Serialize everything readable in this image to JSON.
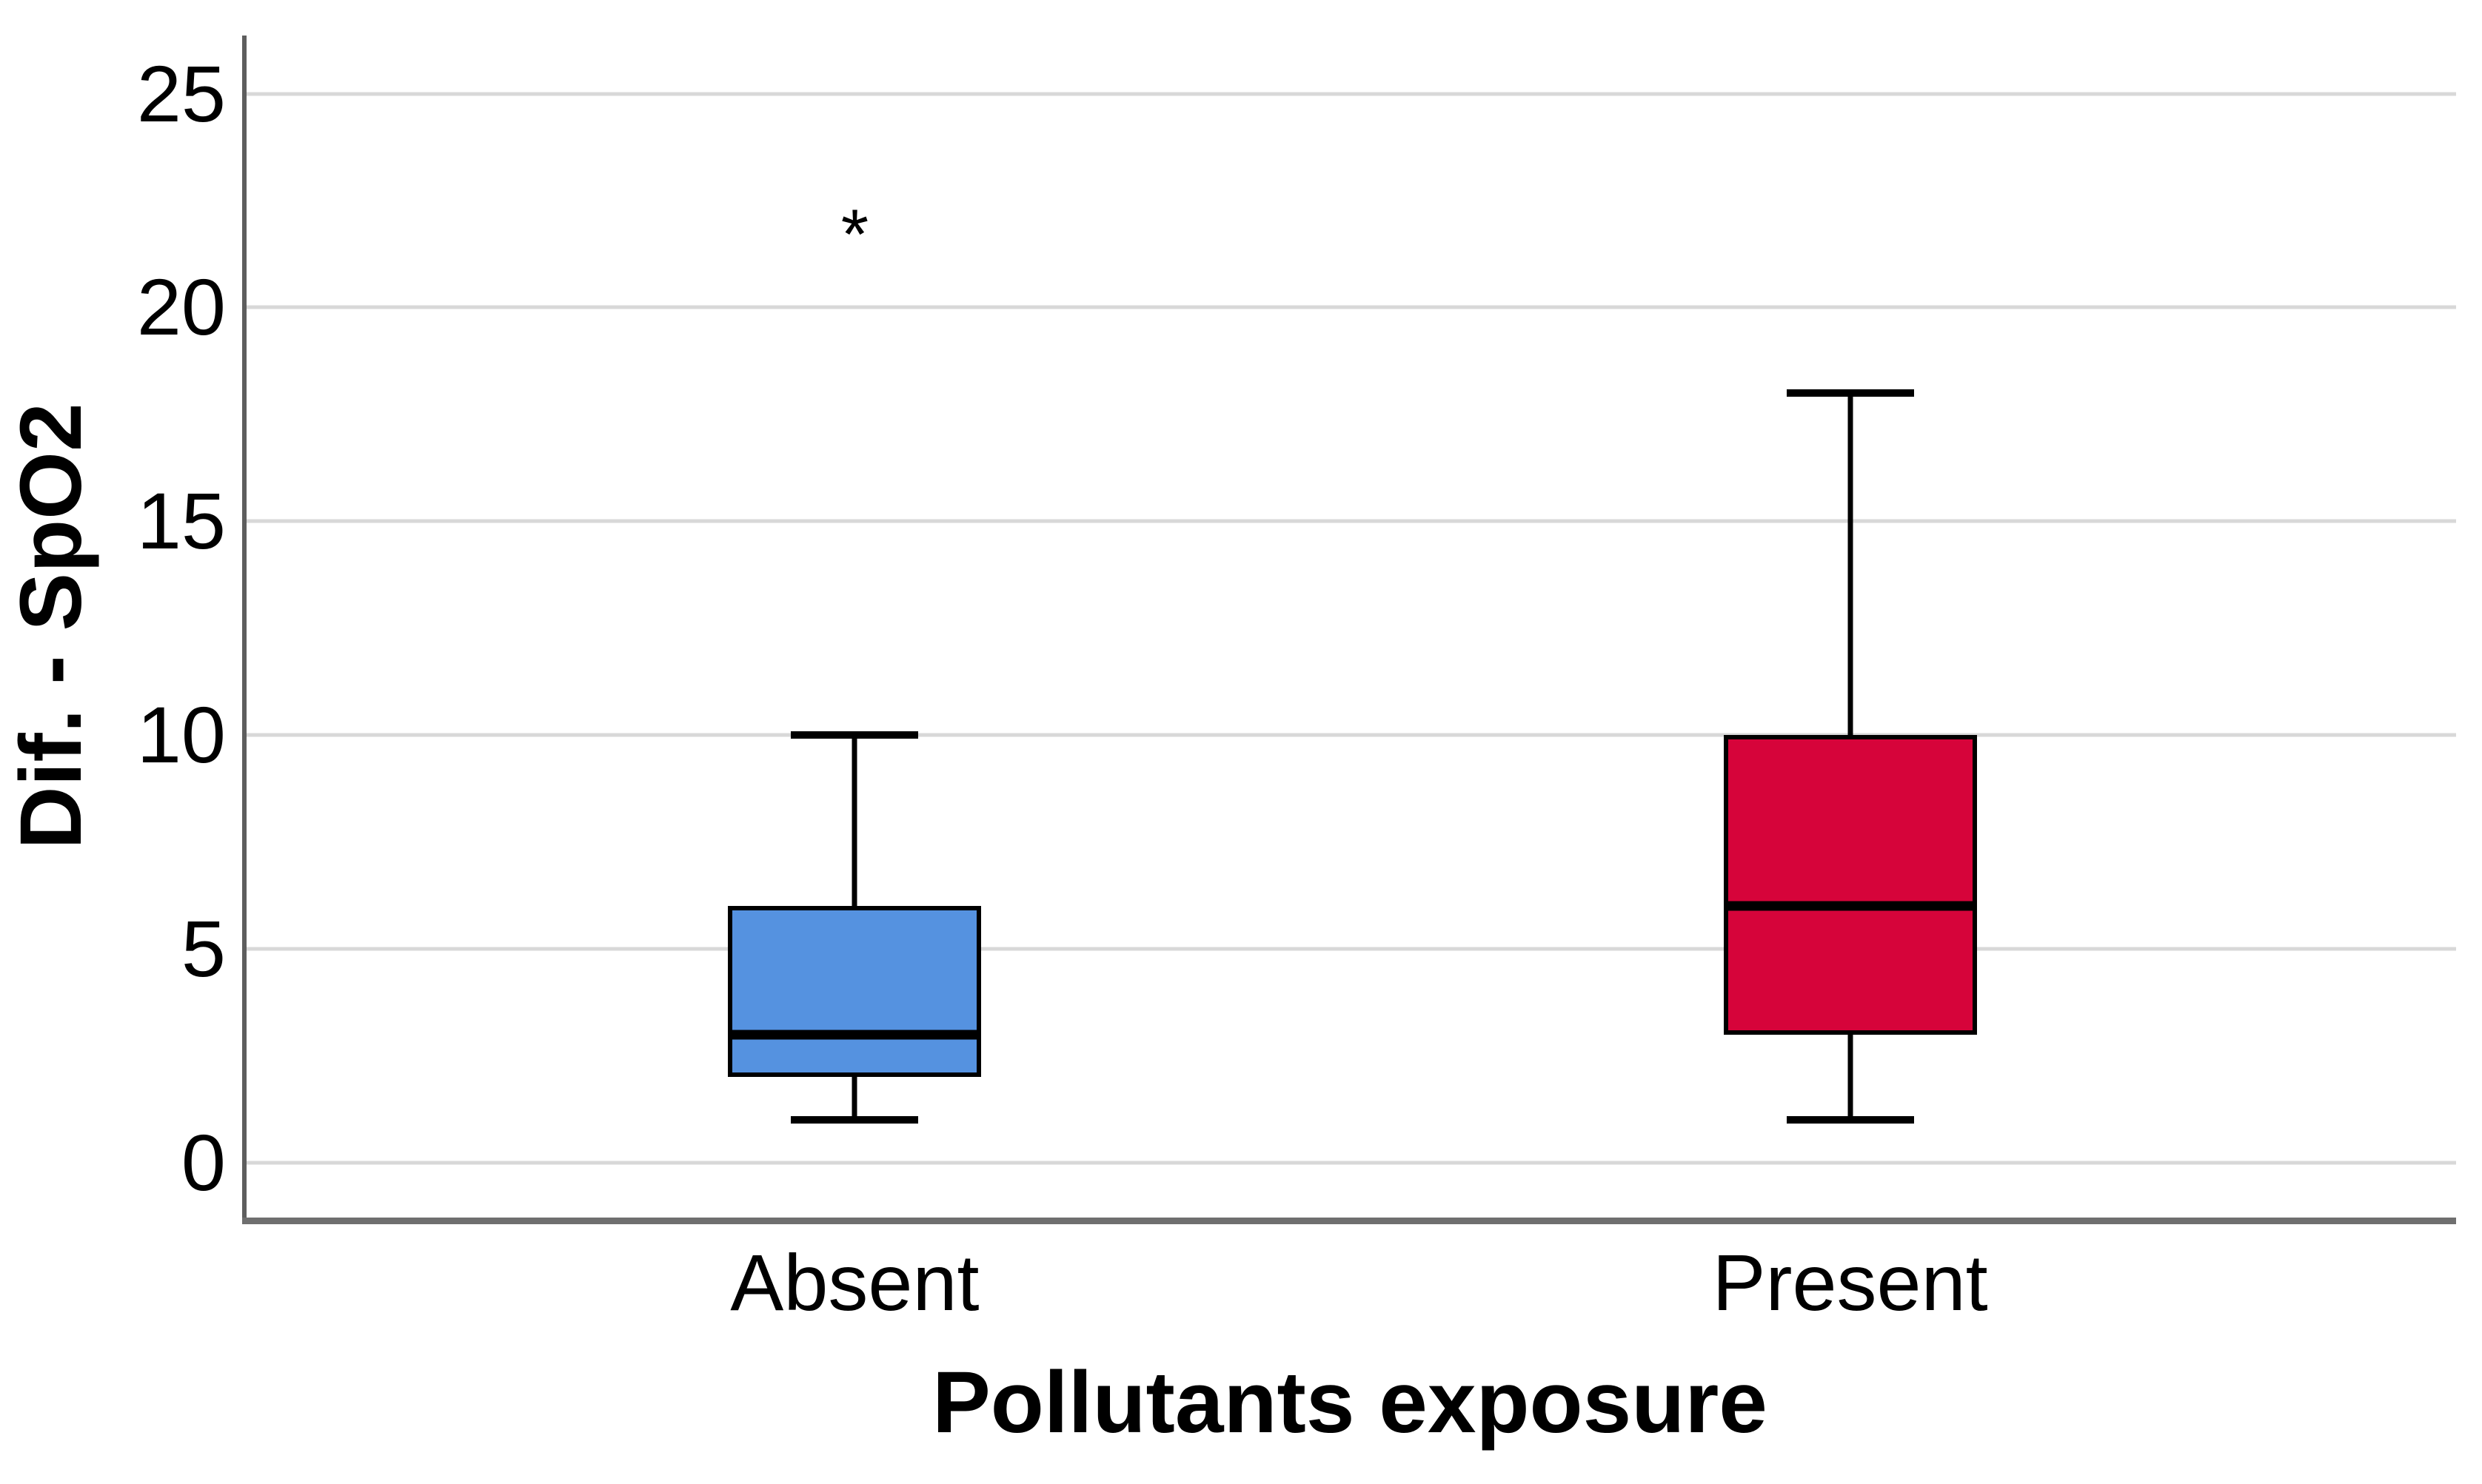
{
  "chart_data": {
    "type": "boxplot",
    "title": "",
    "xlabel": "Pollutants exposure",
    "ylabel": "Dif. - SpO2",
    "categories": [
      "Absent",
      "Present"
    ],
    "y_ticks": [
      0,
      5,
      10,
      15,
      20,
      25
    ],
    "ylim": [
      -1.28,
      26.36
    ],
    "grid": "horizontal-only",
    "legend": "none",
    "series": [
      {
        "category": "Absent",
        "box_color": "#5592e0",
        "whisker_low": 1,
        "q1": 2,
        "median": 3,
        "q3": 6,
        "whisker_high": 10,
        "outliers": [
          {
            "value": 22,
            "symbol": "*",
            "kind": "extreme-outlier"
          }
        ]
      },
      {
        "category": "Present",
        "box_color": "#d6043a",
        "whisker_low": 1,
        "q1": 3,
        "median": 6,
        "q3": 10,
        "whisker_high": 18,
        "outliers": []
      }
    ],
    "colors": {
      "gridline": "#d8d8d8",
      "y_axis_line": "#5e5e5e",
      "x_axis_line": "#6f6f6f",
      "box_border": "#000000",
      "median_line": "#000000",
      "background": "#ffffff"
    }
  }
}
